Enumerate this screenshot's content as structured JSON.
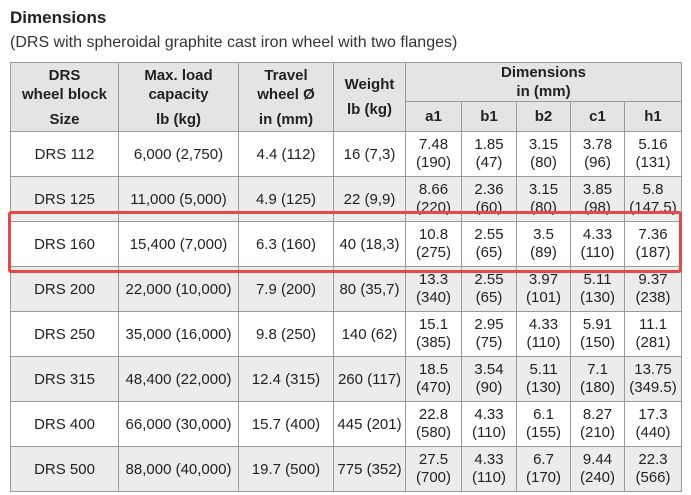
{
  "header": {
    "title": "Dimensions",
    "subtitle": "(DRS with spheroidal graphite cast iron wheel with two flanges)"
  },
  "table": {
    "headers": [
      {
        "lines": [
          "DRS",
          "wheel block"
        ],
        "unit": "Size"
      },
      {
        "lines": [
          "Max. load",
          "capacity"
        ],
        "unit": "lb (kg)"
      },
      {
        "lines": [
          "Travel",
          "wheel  Ø"
        ],
        "unit": "in (mm)"
      },
      {
        "lines": [
          "Weight"
        ],
        "unit": "lb (kg)"
      }
    ],
    "dimensions": {
      "lines": [
        "Dimensions",
        "in (mm)"
      ],
      "columns": [
        "a1",
        "b1",
        "b2",
        "c1",
        "h1"
      ]
    },
    "rows": [
      {
        "size": "DRS 112",
        "load": "6,000 (2,750)",
        "travel": "4.4 (112)",
        "weight": "16 (7,3)",
        "dims": [
          [
            "7.48",
            "(190)"
          ],
          [
            "1.85",
            "(47)"
          ],
          [
            "3.15",
            "(80)"
          ],
          [
            "3.78",
            "(96)"
          ],
          [
            "5.16",
            "(131)"
          ]
        ]
      },
      {
        "size": "DRS 125",
        "load": "11,000 (5,000)",
        "travel": "4.9 (125)",
        "weight": "22 (9,9)",
        "dims": [
          [
            "8.66",
            "(220)"
          ],
          [
            "2.36",
            "(60)"
          ],
          [
            "3.15",
            "(80)"
          ],
          [
            "3.85",
            "(98)"
          ],
          [
            "5.8",
            "(147.5)"
          ]
        ]
      },
      {
        "size": "DRS 160",
        "load": "15,400 (7,000)",
        "travel": "6.3 (160)",
        "weight": "40 (18,3)",
        "dims": [
          [
            "10.8",
            "(275)"
          ],
          [
            "2.55",
            "(65)"
          ],
          [
            "3.5",
            "(89)"
          ],
          [
            "4.33",
            "(110)"
          ],
          [
            "7.36",
            "(187)"
          ]
        ]
      },
      {
        "size": "DRS 200",
        "load": "22,000 (10,000)",
        "travel": "7.9 (200)",
        "weight": "80 (35,7)",
        "dims": [
          [
            "13.3",
            "(340)"
          ],
          [
            "2.55",
            "(65)"
          ],
          [
            "3.97",
            "(101)"
          ],
          [
            "5.11",
            "(130)"
          ],
          [
            "9.37",
            "(238)"
          ]
        ]
      },
      {
        "size": "DRS 250",
        "load": "35,000 (16,000)",
        "travel": "9.8 (250)",
        "weight": "140 (62)",
        "dims": [
          [
            "15.1",
            "(385)"
          ],
          [
            "2.95",
            "(75)"
          ],
          [
            "4.33",
            "(110)"
          ],
          [
            "5.91",
            "(150)"
          ],
          [
            "11.1",
            "(281)"
          ]
        ]
      },
      {
        "size": "DRS 315",
        "load": "48,400 (22,000)",
        "travel": "12.4 (315)",
        "weight": "260 (117)",
        "dims": [
          [
            "18.5",
            "(470)"
          ],
          [
            "3.54",
            "(90)"
          ],
          [
            "5.11",
            "(130)"
          ],
          [
            "7.1",
            "(180)"
          ],
          [
            "13.75",
            "(349.5)"
          ]
        ]
      },
      {
        "size": "DRS 400",
        "load": "66,000 (30,000)",
        "travel": "15.7 (400)",
        "weight": "445 (201)",
        "dims": [
          [
            "22.8",
            "(580)"
          ],
          [
            "4.33",
            "(110)"
          ],
          [
            "6.1",
            "(155)"
          ],
          [
            "8.27",
            "(210)"
          ],
          [
            "17.3",
            "(440)"
          ]
        ]
      },
      {
        "size": "DRS 500",
        "load": "88,000 (40,000)",
        "travel": "19.7 (500)",
        "weight": "775 (352)",
        "dims": [
          [
            "27.5",
            "(700)"
          ],
          [
            "4.33",
            "(110)"
          ],
          [
            "6.7",
            "(170)"
          ],
          [
            "9.44",
            "(240)"
          ],
          [
            "22.3",
            "(566)"
          ]
        ]
      }
    ]
  }
}
